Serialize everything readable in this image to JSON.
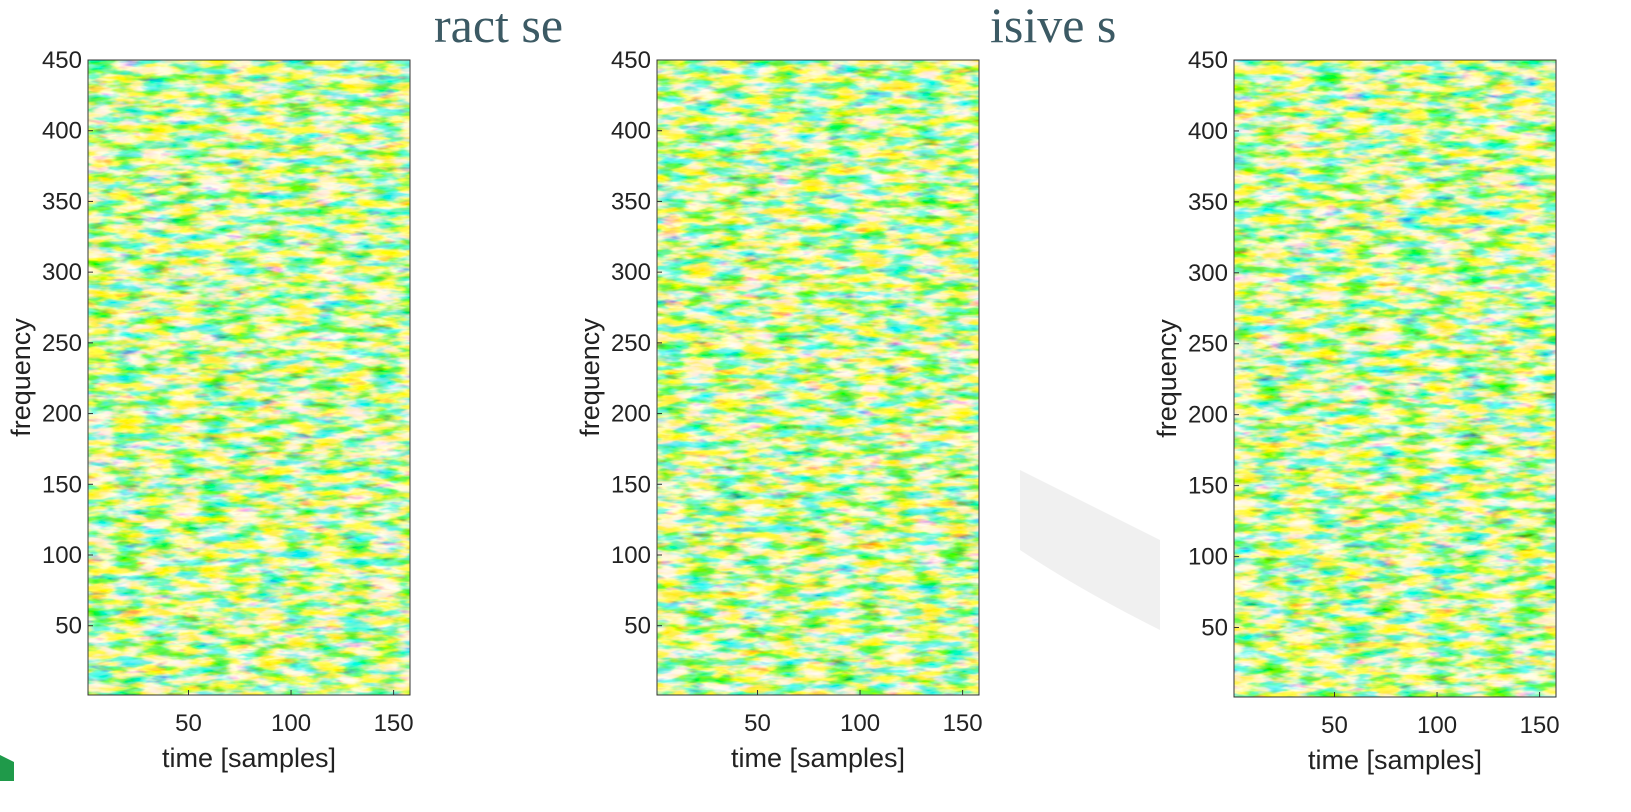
{
  "background": {
    "title_fragments": [
      "ract se",
      "isive s"
    ]
  },
  "chart_data": [
    {
      "type": "heatmap",
      "x_label": "time [samples]",
      "y_label": "frequency",
      "xlim": [
        1,
        158
      ],
      "xticks": [
        50,
        100,
        150
      ],
      "ylim": [
        1,
        450
      ],
      "yticks": [
        50,
        100,
        150,
        200,
        250,
        300,
        350,
        400,
        450
      ],
      "colormap": "jet"
    },
    {
      "type": "heatmap",
      "x_label": "time [samples]",
      "y_label": "frequency",
      "xlim": [
        1,
        158
      ],
      "xticks": [
        50,
        100,
        150
      ],
      "ylim": [
        1,
        450
      ],
      "yticks": [
        50,
        100,
        150,
        200,
        250,
        300,
        350,
        400,
        450
      ],
      "colormap": "jet"
    },
    {
      "type": "heatmap",
      "x_label": "time [samples]",
      "y_label": "frequency",
      "xlim": [
        1,
        158
      ],
      "xticks": [
        50,
        100,
        150
      ],
      "ylim": [
        1,
        450
      ],
      "yticks": [
        50,
        100,
        150,
        200,
        250,
        300,
        350,
        400,
        450
      ],
      "colormap": "jet"
    }
  ]
}
